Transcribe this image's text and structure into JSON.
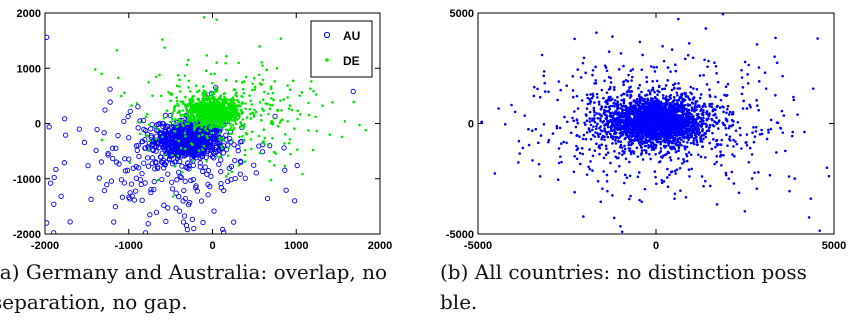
{
  "chart_data": [
    {
      "type": "scatter",
      "xlim": [
        -2000,
        2000
      ],
      "ylim": [
        -2000,
        2000
      ],
      "xticks": [
        "-2000",
        "-1000",
        "0",
        "1000",
        "2000"
      ],
      "yticks": [
        "2000",
        "1000",
        "0",
        "-1000",
        "-2000"
      ],
      "legend_position": "top-right",
      "caption_lines": [
        "(a) Germany and Australia: overlap, no",
        "separation, no gap."
      ],
      "series": [
        {
          "name": "AU",
          "marker": "open-circle",
          "color": "#0000ff",
          "clusters": [
            {
              "center": [
                -280,
                -300
              ],
              "spread": [
                210,
                170
              ],
              "count": 650
            },
            {
              "center": [
                -560,
                -820
              ],
              "spread": [
                640,
                600
              ],
              "count": 230
            }
          ],
          "points": [
            [
              -1980,
              1560
            ],
            [
              -1950,
              -60
            ],
            [
              -1980,
              -1800
            ],
            [
              -1700,
              -1780
            ],
            [
              1680,
              580
            ],
            [
              980,
              -1400
            ],
            [
              -1870,
              -830
            ],
            [
              -800,
              -1980
            ],
            [
              -300,
              -1920
            ]
          ]
        },
        {
          "name": "DE",
          "marker": "dot",
          "color": "#00e600",
          "clusters": [
            {
              "center": [
                0,
                200
              ],
              "spread": [
                170,
                130
              ],
              "count": 950
            },
            {
              "center": [
                150,
                200
              ],
              "spread": [
                550,
                480
              ],
              "count": 320
            }
          ],
          "points": [
            [
              -100,
              1920
            ],
            [
              50,
              1880
            ],
            [
              -600,
              1520
            ],
            [
              1460,
              960
            ],
            [
              -1400,
              980
            ],
            [
              1580,
              40
            ],
            [
              1400,
              -200
            ],
            [
              1830,
              -120
            ],
            [
              700,
              -1020
            ]
          ]
        }
      ]
    },
    {
      "type": "scatter",
      "xlim": [
        -5000,
        5000
      ],
      "ylim": [
        -5000,
        5000
      ],
      "xticks": [
        "-5000",
        "0",
        "5000"
      ],
      "yticks": [
        "5000",
        "0",
        "-5000"
      ],
      "caption_lines": [
        "(b) All countries: no distinction poss",
        "ble."
      ],
      "series": [
        {
          "marker": "dot",
          "color": "#0000ff",
          "clusters": [
            {
              "center": [
                0,
                100
              ],
              "spread": [
                700,
                550
              ],
              "count": 2400
            },
            {
              "center": [
                0,
                0
              ],
              "spread": [
                1900,
                1650
              ],
              "count": 650
            }
          ],
          "points": [
            [
              -4900,
              60
            ],
            [
              1400,
              4300
            ],
            [
              1880,
              4950
            ],
            [
              -3200,
              3100
            ],
            [
              4350,
              -3400
            ],
            [
              4300,
              -4250
            ],
            [
              4600,
              -4850
            ],
            [
              -1000,
              -4650
            ],
            [
              -950,
              -4900
            ],
            [
              4800,
              -2000
            ]
          ]
        }
      ]
    }
  ]
}
